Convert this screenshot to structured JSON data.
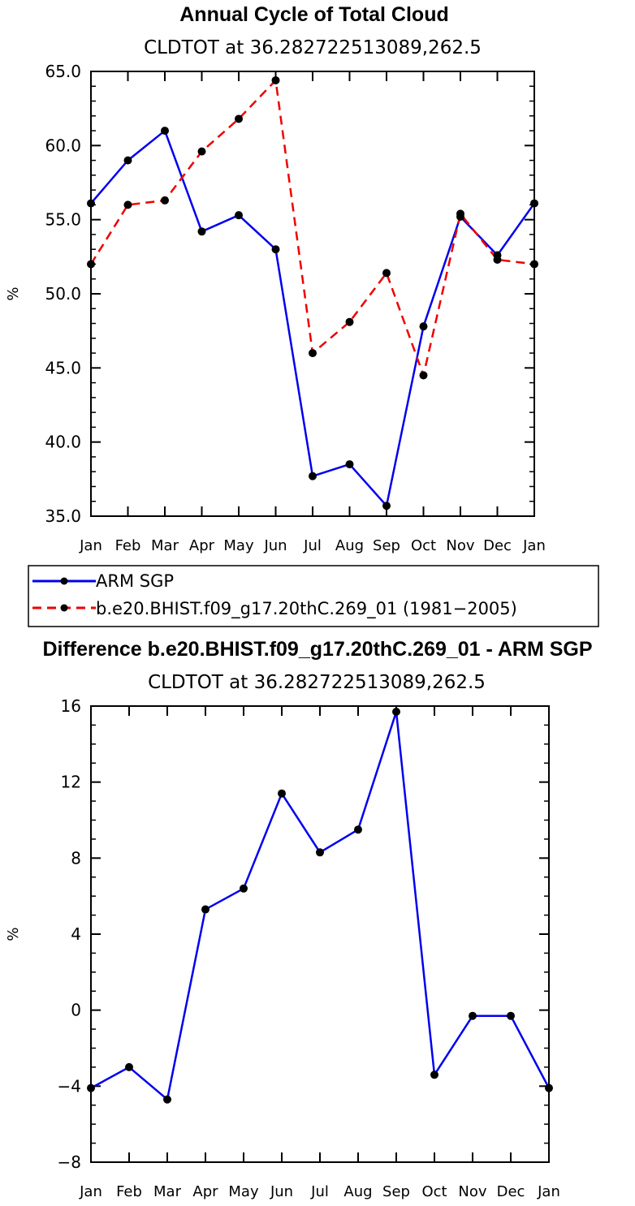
{
  "chart_data": [
    {
      "type": "line",
      "title": "Annual Cycle of Total Cloud",
      "subtitle": "CLDTOT at 36.282722513089,262.5",
      "xlabel": "",
      "ylabel": "%",
      "ylim": [
        35,
        65
      ],
      "yticks": [
        "35.0",
        "40.0",
        "45.0",
        "50.0",
        "55.0",
        "60.0",
        "65.0"
      ],
      "categories": [
        "Jan",
        "Feb",
        "Mar",
        "Apr",
        "May",
        "Jun",
        "Jul",
        "Aug",
        "Sep",
        "Oct",
        "Nov",
        "Dec",
        "Jan"
      ],
      "series": [
        {
          "name": "ARM SGP",
          "color": "#0000ee",
          "dash": "solid",
          "values": [
            56.1,
            59.0,
            61.0,
            54.2,
            55.3,
            53.0,
            37.7,
            38.5,
            35.7,
            47.8,
            55.2,
            52.6,
            56.1
          ]
        },
        {
          "name": "b.e20.BHIST.f09_g17.20thC.269_01 (1981-2005)",
          "color": "#ee0000",
          "dash": "dashed",
          "values": [
            52.0,
            56.0,
            56.3,
            59.6,
            61.8,
            64.4,
            46.0,
            48.1,
            51.4,
            44.5,
            55.4,
            52.3,
            52.0
          ]
        }
      ],
      "legend": [
        {
          "label": "ARM SGP"
        },
        {
          "label": "b.e20.BHIST.f09_g17.20thC.269_01 (1981−2005)"
        }
      ]
    },
    {
      "type": "line",
      "title": "Difference b.e20.BHIST.f09_g17.20thC.269_01 - ARM SGP",
      "subtitle": "CLDTOT at 36.282722513089,262.5",
      "xlabel": "",
      "ylabel": "%",
      "ylim": [
        -8,
        16
      ],
      "yticks": [
        "−8",
        "−4",
        "0",
        "4",
        "8",
        "12",
        "16"
      ],
      "categories": [
        "Jan",
        "Feb",
        "Mar",
        "Apr",
        "May",
        "Jun",
        "Jul",
        "Aug",
        "Sep",
        "Oct",
        "Nov",
        "Dec",
        "Jan"
      ],
      "series": [
        {
          "name": "Difference",
          "color": "#0000ee",
          "dash": "solid",
          "values": [
            -4.1,
            -3.0,
            -4.7,
            5.3,
            6.4,
            11.4,
            8.3,
            9.5,
            15.7,
            -3.4,
            -0.3,
            -0.3,
            -4.1
          ]
        }
      ]
    }
  ]
}
